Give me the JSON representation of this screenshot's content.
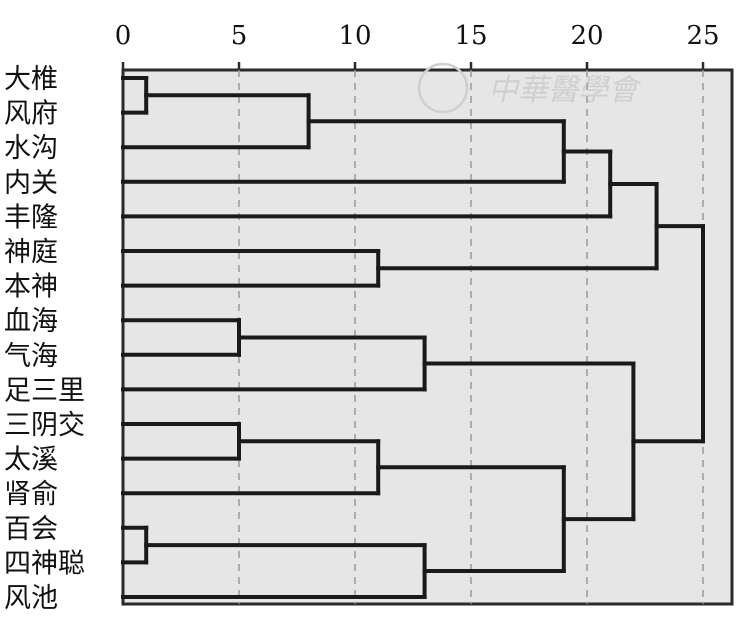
{
  "chart_data": {
    "type": "dendrogram",
    "orientation": "horizontal",
    "xlim": [
      0,
      26
    ],
    "x_ticks": [
      0,
      5,
      10,
      15,
      20,
      25
    ],
    "grid": "vertical-dashed",
    "leaves": [
      "大椎",
      "风府",
      "水沟",
      "内关",
      "丰隆",
      "神庭",
      "本神",
      "血海",
      "气海",
      "足三里",
      "三阴交",
      "太溪",
      "肾俞",
      "百会",
      "四神聪",
      "风池"
    ],
    "merges": [
      {
        "a": "L0",
        "b": "L1",
        "height": 1
      },
      {
        "a": "L13",
        "b": "L14",
        "height": 1
      },
      {
        "a": "L7",
        "b": "L8",
        "height": 5
      },
      {
        "a": "L10",
        "b": "L11",
        "height": 5
      },
      {
        "a": "M0",
        "b": "L2",
        "height": 8
      },
      {
        "a": "L5",
        "b": "L6",
        "height": 11
      },
      {
        "a": "M3",
        "b": "L12",
        "height": 11
      },
      {
        "a": "M2",
        "b": "L9",
        "height": 13
      },
      {
        "a": "M1",
        "b": "L15",
        "height": 13
      },
      {
        "a": "M4",
        "b": "L3",
        "height": 19
      },
      {
        "a": "M6",
        "b": "M8",
        "height": 19
      },
      {
        "a": "M9",
        "b": "L4",
        "height": 21
      },
      {
        "a": "M11",
        "b": "M5",
        "height": 23
      },
      {
        "a": "M7",
        "b": "M10",
        "height": 22
      },
      {
        "a": "M12",
        "b": "M13",
        "height": 25
      }
    ],
    "watermark_text": "中華醫學會"
  }
}
